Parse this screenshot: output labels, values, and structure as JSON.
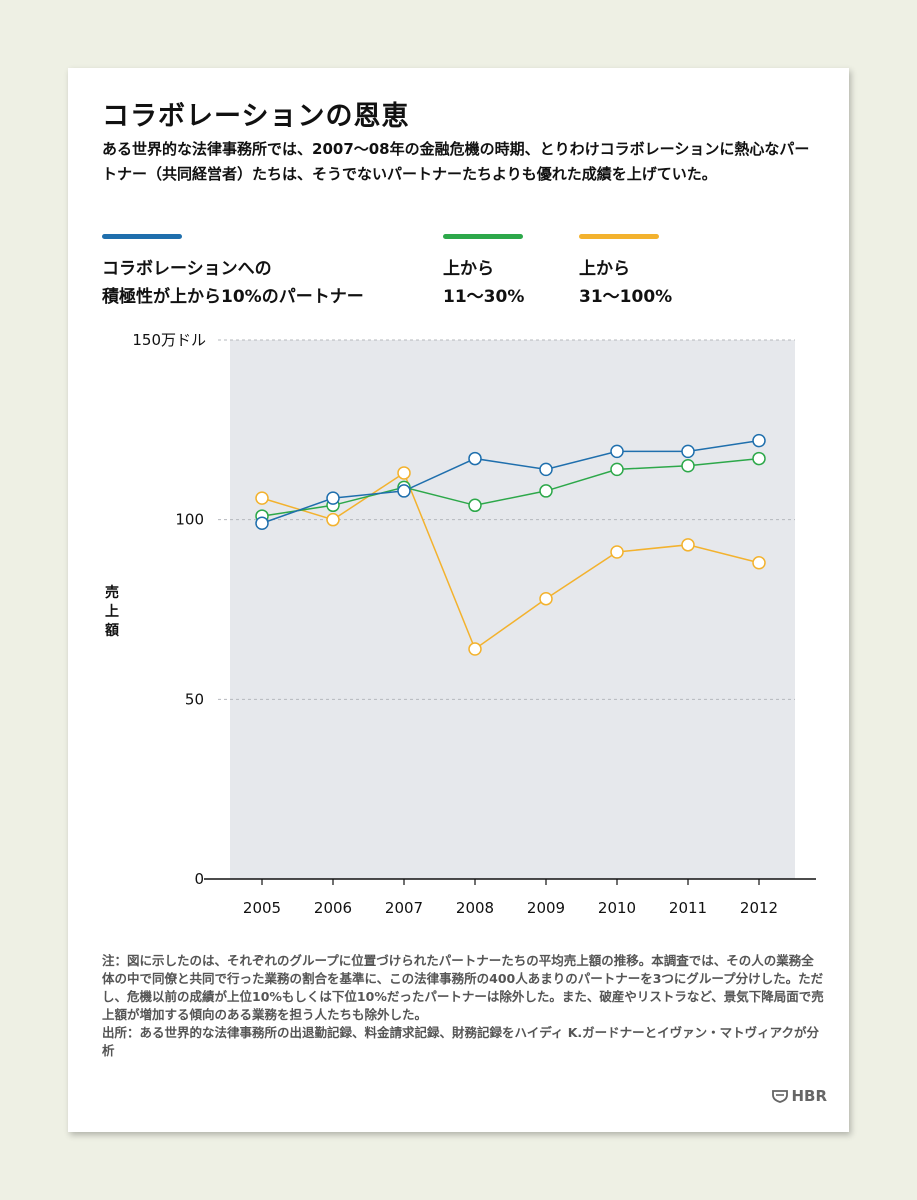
{
  "title": "コラボレーションの恩恵",
  "subtitle": "ある世界的な法律事務所では、2007〜08年の金融危機の時期、とりわけコラボレーションに熱心なパートナー（共同経営者）たちは、そうでないパートナーたちよりも優れた成績を上げていた。",
  "colors": {
    "blue": "#1f6fad",
    "green": "#2da84a",
    "orange": "#f3b22e",
    "plot_bg": "#e6e8ec"
  },
  "legend": [
    {
      "label": "コラボレーションへの\n積極性が上から10%のパートナー",
      "color": "#1f6fad"
    },
    {
      "label": "上から\n11〜30%",
      "color": "#2da84a"
    },
    {
      "label": "上から\n31〜100%",
      "color": "#f3b22e"
    }
  ],
  "chart_data": {
    "type": "line",
    "x": [
      "2005",
      "2006",
      "2007",
      "2008",
      "2009",
      "2010",
      "2011",
      "2012"
    ],
    "ylabel": "売上額",
    "y_unit_label": "150万ドル",
    "yticks": [
      "0",
      "50",
      "100",
      "150万ドル"
    ],
    "ylim": [
      0,
      150
    ],
    "grid": true,
    "series": [
      {
        "name": "コラボレーションへの積極性が上から10%のパートナー",
        "color": "#1f6fad",
        "values": [
          99,
          106,
          108,
          117,
          114,
          119,
          119,
          122
        ]
      },
      {
        "name": "上から11〜30%",
        "color": "#2da84a",
        "values": [
          101,
          104,
          109,
          104,
          108,
          114,
          115,
          117
        ]
      },
      {
        "name": "上から31〜100%",
        "color": "#f3b22e",
        "values": [
          106,
          100,
          113,
          64,
          78,
          91,
          93,
          88
        ]
      }
    ]
  },
  "notes": [
    "注：図に示したのは、それぞれのグループに位置づけられたパートナーたちの平均売上額の推移。本調査では、その人の業務全体の中で同僚と共同で行った業務の割合を基準に、この法律事務所の400人あまりのパートナーを3つにグループ分けした。ただし、危機以前の成績が上位10%もしくは下位10%だったパートナーは除外した。また、破産やリストラなど、景気下降局面で売上額が増加する傾向のある業務を担う人たちも除外した。",
    "出所：ある世界的な法律事務所の出退勤記録、料金請求記録、財務記録をハイディ K.ガードナーとイヴァン・マトヴィアクが分析"
  ],
  "logo": "HBR"
}
